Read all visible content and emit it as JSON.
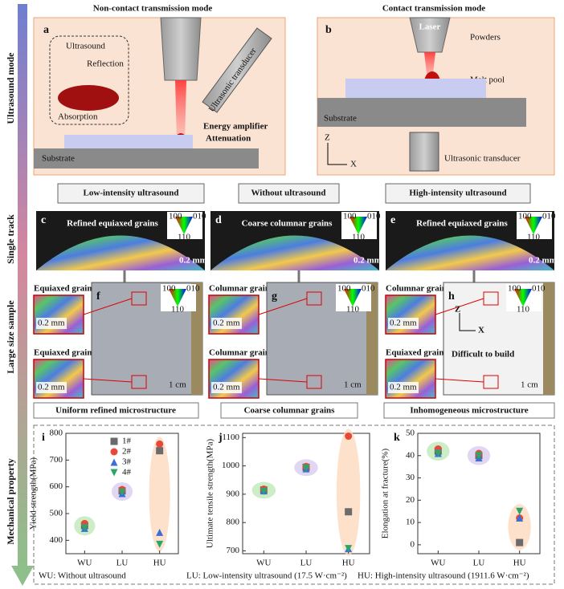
{
  "side_labels": [
    "Ultrasound mode",
    "Single track",
    "Large size sample",
    "Mechanical property"
  ],
  "panel_a": {
    "title": "Non-contact transmission mode",
    "letter": "a",
    "labels": [
      "Ultrasound",
      "Reflection",
      "Absorption",
      "Ultrasonic transducer",
      "Energy amplifier",
      "Attenuation",
      "Substrate"
    ]
  },
  "panel_b": {
    "title": "Contact transmission  mode",
    "letter": "b",
    "labels": [
      "Laser",
      "Powders",
      "Melt pool",
      "Substrate",
      "Ultrasonic transducer",
      "Z",
      "X"
    ]
  },
  "conditions": [
    "Low-intensity ultrasound",
    "Without ultrasound",
    "High-intensity ultrasound"
  ],
  "ipf": [
    "100",
    "010",
    "110"
  ],
  "single_track": [
    {
      "letter": "c",
      "label": "Refined equiaxed grains",
      "scale": "0.2 mm"
    },
    {
      "letter": "d",
      "label": "Coarse columnar grains",
      "scale": "0.2 mm"
    },
    {
      "letter": "e",
      "label": "Refined equiaxed grains",
      "scale": "0.2 mm"
    }
  ],
  "large_sample": [
    {
      "letter": "f",
      "insets": [
        "Equiaxed grains",
        "Equiaxed grains"
      ],
      "inset_scale": "0.2 mm",
      "scale": "1 cm"
    },
    {
      "letter": "g",
      "insets": [
        "Columnar grains",
        "Columnar grains"
      ],
      "inset_scale": "0.2 mm",
      "scale": "1 cm"
    },
    {
      "letter": "h",
      "insets": [
        "Columnar grains",
        "Equiaxed grains"
      ],
      "inset_scale": "0.2 mm",
      "scale": "1 cm",
      "axes": [
        "Z",
        "X"
      ],
      "note": "Difficult to build"
    }
  ],
  "outcomes": [
    "Uniform refined microstructure",
    "Coarse columnar grains",
    "Inhomogeneous microstructure"
  ],
  "chart_data": [
    {
      "type": "scatter",
      "letter": "i",
      "y_label": "Yield strength(MPa)",
      "categories": [
        "WU",
        "LU",
        "HU"
      ],
      "ylim": [
        350,
        800
      ],
      "yticks": [
        400,
        500,
        600,
        700,
        800
      ],
      "legend": true,
      "band_colors": [
        "#bfe8b8",
        "#d9cdf0",
        "#fcd9bd"
      ],
      "series": [
        {
          "name": "1#",
          "color": "#6b6b6b",
          "marker": "square",
          "values": [
            455,
            585,
            735
          ]
        },
        {
          "name": "2#",
          "color": "#e8483a",
          "marker": "circle",
          "values": [
            463,
            590,
            760
          ]
        },
        {
          "name": "3#",
          "color": "#3a6fd8",
          "marker": "triangle",
          "values": [
            445,
            575,
            430
          ]
        },
        {
          "name": "4#",
          "color": "#2aa66a",
          "marker": "triangle-down",
          "values": [
            447,
            580,
            385
          ]
        }
      ]
    },
    {
      "type": "scatter",
      "letter": "j",
      "y_label": "Ultimate tensile strength(MPa)",
      "categories": [
        "WU",
        "LU",
        "HU"
      ],
      "ylim": [
        690,
        1115
      ],
      "yticks": [
        700,
        800,
        900,
        1000,
        1100
      ],
      "legend": false,
      "band_colors": [
        "#bfe8b8",
        "#d9cdf0",
        "#fcd9bd"
      ],
      "series": [
        {
          "name": "1#",
          "color": "#6b6b6b",
          "marker": "square",
          "values": [
            915,
            995,
            838
          ]
        },
        {
          "name": "2#",
          "color": "#e8483a",
          "marker": "circle",
          "values": [
            918,
            998,
            1105
          ]
        },
        {
          "name": "3#",
          "color": "#3a6fd8",
          "marker": "triangle",
          "values": [
            912,
            990,
            708
          ]
        },
        {
          "name": "4#",
          "color": "#2aa66a",
          "marker": "triangle-down",
          "values": [
            910,
            992,
            708
          ]
        }
      ]
    },
    {
      "type": "scatter",
      "letter": "k",
      "y_label": "Elongation at fracture(%)",
      "categories": [
        "WU",
        "LU",
        "HU"
      ],
      "ylim": [
        -4,
        50
      ],
      "yticks": [
        0,
        10,
        20,
        30,
        40,
        50
      ],
      "legend": false,
      "band_colors": [
        "#bfe8b8",
        "#d9cdf0",
        "#fcd9bd"
      ],
      "series": [
        {
          "name": "1#",
          "color": "#6b6b6b",
          "marker": "square",
          "values": [
            42,
            40,
            1
          ]
        },
        {
          "name": "2#",
          "color": "#e8483a",
          "marker": "circle",
          "values": [
            43,
            41,
            12
          ]
        },
        {
          "name": "3#",
          "color": "#3a6fd8",
          "marker": "triangle",
          "values": [
            41,
            39,
            12
          ]
        },
        {
          "name": "4#",
          "color": "#2aa66a",
          "marker": "triangle-down",
          "values": [
            41,
            40,
            15
          ]
        }
      ]
    }
  ],
  "footer": [
    "WU: Without ultrasound",
    "LU: Low-intensity ultrasound (17.5 W·cm⁻²)",
    "HU: High-intensity ultrasound (1911.6 W·cm⁻²)"
  ]
}
